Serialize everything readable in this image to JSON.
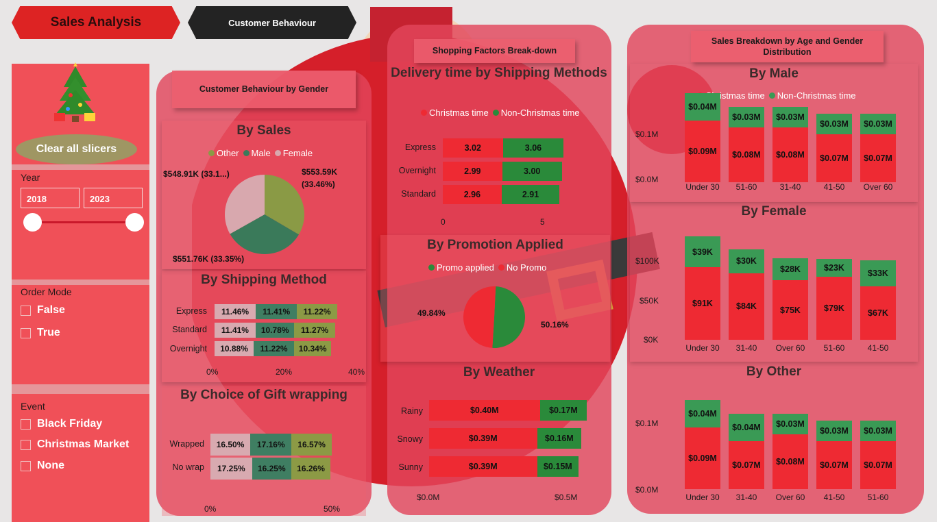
{
  "tabs": {
    "sales": "Sales Analysis",
    "customer": "Customer Behaviour"
  },
  "sidebar": {
    "clear": "Clear all slicers",
    "year_label": "Year",
    "year_from": "2018",
    "year_to": "2023",
    "order_mode_label": "Order Mode",
    "order_mode_options": [
      "False",
      "True"
    ],
    "event_label": "Event",
    "event_options": [
      "Black Friday",
      "Christmas Market",
      "None"
    ]
  },
  "gender_panel": {
    "header": "Customer Behaviour by Gender",
    "by_sales": {
      "title": "By Sales",
      "legend": [
        "Other",
        "Male",
        "Female"
      ],
      "label_other": "$553.59K",
      "label_other_pct": "(33.46%)",
      "label_male": "$551.76K (33.35%)",
      "label_female": "$548.91K (33.1...)"
    },
    "shipping": {
      "title": "By Shipping Method",
      "rows": [
        {
          "name": "Express",
          "v": [
            "11.46%",
            "11.41%",
            "11.22%"
          ]
        },
        {
          "name": "Standard",
          "v": [
            "11.41%",
            "10.78%",
            "11.27%"
          ]
        },
        {
          "name": "Overnight",
          "v": [
            "10.88%",
            "11.22%",
            "10.34%"
          ]
        }
      ],
      "axis": [
        "0%",
        "20%",
        "40%"
      ]
    },
    "gift": {
      "title": "By Choice of Gift wrapping",
      "rows": [
        {
          "name": "Wrapped",
          "v": [
            "16.50%",
            "17.16%",
            "16.57%"
          ]
        },
        {
          "name": "No wrap",
          "v": [
            "17.25%",
            "16.25%",
            "16.26%"
          ]
        }
      ],
      "axis": [
        "0%",
        "50%"
      ]
    }
  },
  "factors_panel": {
    "header": "Shopping Factors Break-down",
    "delivery": {
      "title": "Delivery time by Shipping Methods",
      "legend": [
        "Christmas time",
        "Non-Christmas time"
      ],
      "rows": [
        {
          "name": "Express",
          "a": "3.02",
          "b": "3.06"
        },
        {
          "name": "Overnight",
          "a": "2.99",
          "b": "3.00"
        },
        {
          "name": "Standard",
          "a": "2.96",
          "b": "2.91"
        }
      ],
      "axis": [
        "0",
        "5"
      ]
    },
    "promo": {
      "title": "By Promotion Applied",
      "legend": [
        "Promo applied",
        "No Promo"
      ],
      "label_no": "49.84%",
      "label_yes": "50.16%"
    },
    "weather": {
      "title": "By Weather",
      "rows": [
        {
          "name": "Rainy",
          "a": "$0.40M",
          "b": "$0.17M"
        },
        {
          "name": "Snowy",
          "a": "$0.39M",
          "b": "$0.16M"
        },
        {
          "name": "Sunny",
          "a": "$0.39M",
          "b": "$0.15M"
        }
      ],
      "axis": [
        "$0.0M",
        "$0.5M"
      ]
    }
  },
  "age_panel": {
    "header": "Sales Breakdown by Age and Gender Distribution",
    "legend": [
      "Christmas time",
      "Non-Christmas time"
    ],
    "male": {
      "title": "By Male",
      "yaxis": [
        "$0.1M",
        "$0.0M"
      ],
      "cats": [
        "Under 30",
        "51-60",
        "31-40",
        "41-50",
        "Over 60"
      ],
      "red": [
        "$0.09M",
        "$0.08M",
        "$0.08M",
        "$0.07M",
        "$0.07M"
      ],
      "green": [
        "$0.04M",
        "$0.03M",
        "$0.03M",
        "$0.03M",
        "$0.03M"
      ]
    },
    "female": {
      "title": "By Female",
      "yaxis": [
        "$100K",
        "$50K",
        "$0K"
      ],
      "cats": [
        "Under 30",
        "31-40",
        "Over 60",
        "51-60",
        "41-50"
      ],
      "red": [
        "$91K",
        "$84K",
        "$75K",
        "$79K",
        "$67K"
      ],
      "green": [
        "$39K",
        "$30K",
        "$28K",
        "$23K",
        "$33K"
      ]
    },
    "other": {
      "title": "By Other",
      "yaxis": [
        "$0.1M",
        "$0.0M"
      ],
      "cats": [
        "Under 30",
        "31-40",
        "Over 60",
        "41-50",
        "51-60"
      ],
      "red": [
        "$0.09M",
        "$0.07M",
        "$0.08M",
        "$0.07M",
        "$0.07M"
      ],
      "green": [
        "$0.04M",
        "$0.04M",
        "$0.03M",
        "$0.03M",
        "$0.03M"
      ]
    }
  },
  "chart_data": [
    {
      "type": "pie",
      "title": "By Sales",
      "categories": [
        "Other",
        "Male",
        "Female"
      ],
      "values": [
        553.59,
        551.76,
        548.91
      ]
    },
    {
      "type": "bar",
      "title": "By Shipping Method",
      "categories": [
        "Express",
        "Standard",
        "Overnight"
      ],
      "series": [
        {
          "values": [
            11.46,
            11.41,
            10.88
          ]
        },
        {
          "values": [
            11.41,
            10.78,
            11.22
          ]
        },
        {
          "values": [
            11.22,
            11.27,
            10.34
          ]
        }
      ]
    },
    {
      "type": "bar",
      "title": "By Choice of Gift wrapping",
      "categories": [
        "Wrapped",
        "No wrap"
      ],
      "series": [
        {
          "values": [
            16.5,
            17.25
          ]
        },
        {
          "values": [
            17.16,
            16.25
          ]
        },
        {
          "values": [
            16.57,
            16.26
          ]
        }
      ]
    },
    {
      "type": "bar",
      "title": "Delivery time by Shipping Methods",
      "categories": [
        "Express",
        "Overnight",
        "Standard"
      ],
      "series": [
        {
          "name": "Christmas time",
          "values": [
            3.02,
            2.99,
            2.96
          ]
        },
        {
          "name": "Non-Christmas time",
          "values": [
            3.06,
            3.0,
            2.91
          ]
        }
      ]
    },
    {
      "type": "pie",
      "title": "By Promotion Applied",
      "categories": [
        "Promo applied",
        "No Promo"
      ],
      "values": [
        50.16,
        49.84
      ]
    },
    {
      "type": "bar",
      "title": "By Weather",
      "categories": [
        "Rainy",
        "Snowy",
        "Sunny"
      ],
      "series": [
        {
          "values": [
            0.4,
            0.39,
            0.39
          ]
        },
        {
          "values": [
            0.17,
            0.16,
            0.15
          ]
        }
      ]
    },
    {
      "type": "bar",
      "title": "By Male",
      "categories": [
        "Under 30",
        "51-60",
        "31-40",
        "41-50",
        "Over 60"
      ],
      "series": [
        {
          "name": "Christmas time",
          "values": [
            0.09,
            0.08,
            0.08,
            0.07,
            0.07
          ]
        },
        {
          "name": "Non-Christmas time",
          "values": [
            0.04,
            0.03,
            0.03,
            0.03,
            0.03
          ]
        }
      ]
    },
    {
      "type": "bar",
      "title": "By Female",
      "categories": [
        "Under 30",
        "31-40",
        "Over 60",
        "51-60",
        "41-50"
      ],
      "series": [
        {
          "name": "Christmas time",
          "values": [
            91,
            84,
            75,
            79,
            67
          ]
        },
        {
          "name": "Non-Christmas time",
          "values": [
            39,
            30,
            28,
            23,
            33
          ]
        }
      ]
    },
    {
      "type": "bar",
      "title": "By Other",
      "categories": [
        "Under 30",
        "31-40",
        "Over 60",
        "41-50",
        "51-60"
      ],
      "series": [
        {
          "name": "Christmas time",
          "values": [
            0.09,
            0.07,
            0.08,
            0.07,
            0.07
          ]
        },
        {
          "name": "Non-Christmas time",
          "values": [
            0.04,
            0.04,
            0.03,
            0.03,
            0.03
          ]
        }
      ]
    }
  ]
}
